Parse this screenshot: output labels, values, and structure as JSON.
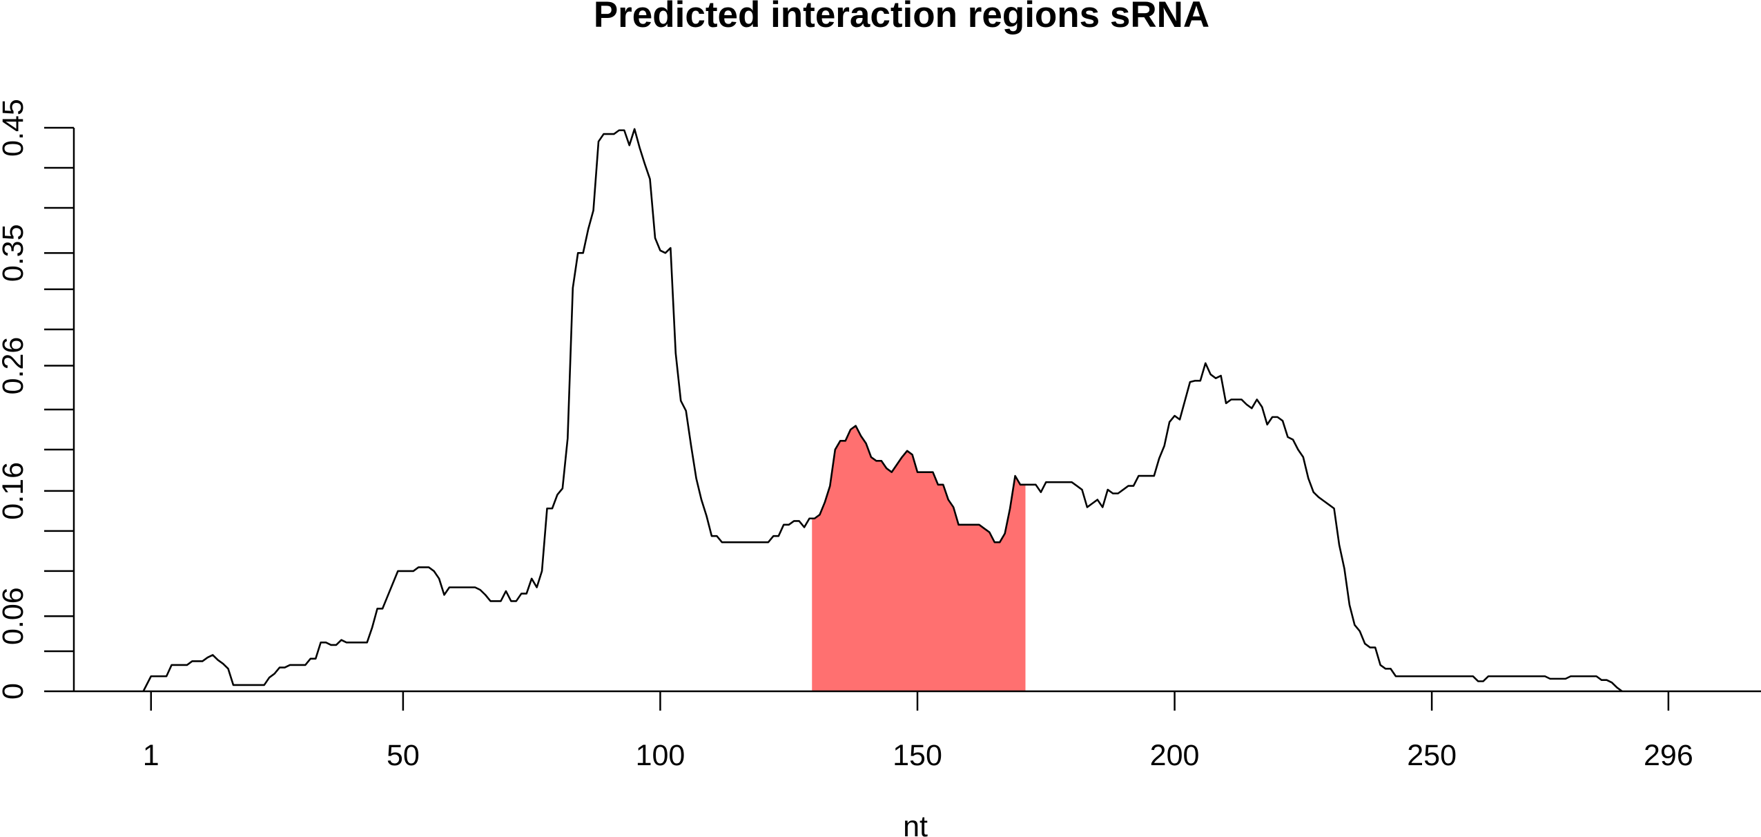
{
  "chart_data": {
    "type": "line",
    "title": "Predicted interaction regions sRNA",
    "xlabel": "nt",
    "ylabel": "",
    "xlim": [
      -14,
      314
    ],
    "ylim": [
      0,
      0.45
    ],
    "x_ticks": [
      1,
      50,
      100,
      150,
      200,
      250,
      296
    ],
    "x_tick_labels": [
      "1",
      "50",
      "100",
      "150",
      "200",
      "250",
      "296"
    ],
    "y_tick_labels": [
      {
        "value": 0,
        "label": "0"
      },
      {
        "value": 0.06,
        "label": "0.06"
      },
      {
        "value": 0.16,
        "label": "0.16"
      },
      {
        "value": 0.26,
        "label": "0.26"
      },
      {
        "value": 0.35,
        "label": "0.35"
      },
      {
        "value": 0.45,
        "label": "0.45"
      }
    ],
    "y_minor_ticks": [
      0.032,
      0.096,
      0.128,
      0.193,
      0.225,
      0.289,
      0.321,
      0.386,
      0.418
    ],
    "highlight_region": {
      "x_start": 129.5,
      "x_end": 171,
      "color": "#FF7070"
    },
    "line_color": "#000000",
    "series": [
      {
        "values": [
          [
            -0.5,
            0
          ],
          [
            0,
            0.004
          ],
          [
            1,
            0.012
          ],
          [
            2,
            0.012
          ],
          [
            3,
            0.012
          ],
          [
            4,
            0.012
          ],
          [
            5,
            0.021
          ],
          [
            6,
            0.021
          ],
          [
            7,
            0.021
          ],
          [
            8,
            0.021
          ],
          [
            9,
            0.024
          ],
          [
            10,
            0.024
          ],
          [
            11,
            0.024
          ],
          [
            12,
            0.027
          ],
          [
            13,
            0.029
          ],
          [
            14,
            0.025
          ],
          [
            15,
            0.022
          ],
          [
            16,
            0.018
          ],
          [
            17,
            0.005
          ],
          [
            18,
            0.005
          ],
          [
            19,
            0.005
          ],
          [
            20,
            0.005
          ],
          [
            21,
            0.005
          ],
          [
            22,
            0.005
          ],
          [
            23,
            0.005
          ],
          [
            24,
            0.011
          ],
          [
            25,
            0.014
          ],
          [
            26,
            0.019
          ],
          [
            27,
            0.019
          ],
          [
            28,
            0.021
          ],
          [
            29,
            0.021
          ],
          [
            30,
            0.021
          ],
          [
            31,
            0.021
          ],
          [
            32,
            0.026
          ],
          [
            33,
            0.026
          ],
          [
            34,
            0.039
          ],
          [
            35,
            0.039
          ],
          [
            36,
            0.037
          ],
          [
            37,
            0.037
          ],
          [
            38,
            0.041
          ],
          [
            39,
            0.039
          ],
          [
            40,
            0.039
          ],
          [
            41,
            0.039
          ],
          [
            42,
            0.039
          ],
          [
            43,
            0.039
          ],
          [
            44,
            0.051
          ],
          [
            45,
            0.066
          ],
          [
            46,
            0.066
          ],
          [
            47,
            0.076
          ],
          [
            48,
            0.086
          ],
          [
            49,
            0.096
          ],
          [
            50,
            0.096
          ],
          [
            51,
            0.096
          ],
          [
            52,
            0.096
          ],
          [
            53,
            0.099
          ],
          [
            54,
            0.099
          ],
          [
            55,
            0.099
          ],
          [
            56,
            0.096
          ],
          [
            57,
            0.09
          ],
          [
            58,
            0.077
          ],
          [
            59,
            0.083
          ],
          [
            60,
            0.083
          ],
          [
            61,
            0.083
          ],
          [
            62,
            0.083
          ],
          [
            63,
            0.083
          ],
          [
            64,
            0.083
          ],
          [
            65,
            0.081
          ],
          [
            66,
            0.077
          ],
          [
            67,
            0.072
          ],
          [
            68,
            0.072
          ],
          [
            69,
            0.072
          ],
          [
            70,
            0.08
          ],
          [
            71,
            0.072
          ],
          [
            72,
            0.072
          ],
          [
            73,
            0.078
          ],
          [
            74,
            0.078
          ],
          [
            75,
            0.09
          ],
          [
            76,
            0.083
          ],
          [
            77,
            0.096
          ],
          [
            78,
            0.146
          ],
          [
            79,
            0.146
          ],
          [
            80,
            0.157
          ],
          [
            81,
            0.162
          ],
          [
            82,
            0.202
          ],
          [
            83,
            0.322
          ],
          [
            84,
            0.35
          ],
          [
            85,
            0.35
          ],
          [
            86,
            0.369
          ],
          [
            87,
            0.384
          ],
          [
            88,
            0.439
          ],
          [
            89,
            0.445
          ],
          [
            90,
            0.445
          ],
          [
            91,
            0.445
          ],
          [
            92,
            0.448
          ],
          [
            93,
            0.448
          ],
          [
            94,
            0.436
          ],
          [
            95,
            0.449
          ],
          [
            96,
            0.434
          ],
          [
            97,
            0.421
          ],
          [
            98,
            0.409
          ],
          [
            99,
            0.362
          ],
          [
            100,
            0.352
          ],
          [
            101,
            0.35
          ],
          [
            102,
            0.354
          ],
          [
            103,
            0.27
          ],
          [
            104,
            0.232
          ],
          [
            105,
            0.224
          ],
          [
            106,
            0.196
          ],
          [
            107,
            0.17
          ],
          [
            108,
            0.153
          ],
          [
            109,
            0.14
          ],
          [
            110,
            0.124
          ],
          [
            111,
            0.124
          ],
          [
            112,
            0.119
          ],
          [
            113,
            0.119
          ],
          [
            114,
            0.119
          ],
          [
            115,
            0.119
          ],
          [
            116,
            0.119
          ],
          [
            117,
            0.119
          ],
          [
            118,
            0.119
          ],
          [
            119,
            0.119
          ],
          [
            120,
            0.119
          ],
          [
            121,
            0.119
          ],
          [
            122,
            0.124
          ],
          [
            123,
            0.124
          ],
          [
            124,
            0.133
          ],
          [
            125,
            0.133
          ],
          [
            126,
            0.136
          ],
          [
            127,
            0.136
          ],
          [
            128,
            0.131
          ],
          [
            129,
            0.138
          ],
          [
            130,
            0.138
          ],
          [
            131,
            0.141
          ],
          [
            132,
            0.151
          ],
          [
            133,
            0.164
          ],
          [
            134,
            0.193
          ],
          [
            135,
            0.2
          ],
          [
            136,
            0.2
          ],
          [
            137,
            0.209
          ],
          [
            138,
            0.212
          ],
          [
            139,
            0.204
          ],
          [
            140,
            0.198
          ],
          [
            141,
            0.187
          ],
          [
            142,
            0.184
          ],
          [
            143,
            0.184
          ],
          [
            144,
            0.178
          ],
          [
            145,
            0.175
          ],
          [
            146,
            0.181
          ],
          [
            147,
            0.187
          ],
          [
            148,
            0.192
          ],
          [
            149,
            0.189
          ],
          [
            150,
            0.175
          ],
          [
            151,
            0.175
          ],
          [
            152,
            0.175
          ],
          [
            153,
            0.175
          ],
          [
            154,
            0.165
          ],
          [
            155,
            0.165
          ],
          [
            156,
            0.153
          ],
          [
            157,
            0.147
          ],
          [
            158,
            0.133
          ],
          [
            159,
            0.133
          ],
          [
            160,
            0.133
          ],
          [
            161,
            0.133
          ],
          [
            162,
            0.133
          ],
          [
            163,
            0.13
          ],
          [
            164,
            0.127
          ],
          [
            165,
            0.119
          ],
          [
            166,
            0.119
          ],
          [
            167,
            0.126
          ],
          [
            168,
            0.146
          ],
          [
            169,
            0.172
          ],
          [
            170,
            0.165
          ],
          [
            171,
            0.165
          ],
          [
            172,
            0.165
          ],
          [
            173,
            0.165
          ],
          [
            174,
            0.159
          ],
          [
            175,
            0.167
          ],
          [
            176,
            0.167
          ],
          [
            177,
            0.167
          ],
          [
            178,
            0.167
          ],
          [
            179,
            0.167
          ],
          [
            180,
            0.167
          ],
          [
            181,
            0.164
          ],
          [
            182,
            0.161
          ],
          [
            183,
            0.147
          ],
          [
            184,
            0.15
          ],
          [
            185,
            0.153
          ],
          [
            186,
            0.147
          ],
          [
            187,
            0.161
          ],
          [
            188,
            0.158
          ],
          [
            189,
            0.158
          ],
          [
            190,
            0.161
          ],
          [
            191,
            0.164
          ],
          [
            192,
            0.164
          ],
          [
            193,
            0.172
          ],
          [
            194,
            0.172
          ],
          [
            195,
            0.172
          ],
          [
            196,
            0.172
          ],
          [
            197,
            0.186
          ],
          [
            198,
            0.196
          ],
          [
            199,
            0.215
          ],
          [
            200,
            0.22
          ],
          [
            201,
            0.217
          ],
          [
            202,
            0.232
          ],
          [
            203,
            0.247
          ],
          [
            204,
            0.248
          ],
          [
            205,
            0.248
          ],
          [
            206,
            0.262
          ],
          [
            207,
            0.253
          ],
          [
            208,
            0.25
          ],
          [
            209,
            0.252
          ],
          [
            210,
            0.23
          ],
          [
            211,
            0.233
          ],
          [
            212,
            0.233
          ],
          [
            213,
            0.233
          ],
          [
            214,
            0.229
          ],
          [
            215,
            0.226
          ],
          [
            216,
            0.233
          ],
          [
            217,
            0.227
          ],
          [
            218,
            0.213
          ],
          [
            219,
            0.219
          ],
          [
            220,
            0.219
          ],
          [
            221,
            0.216
          ],
          [
            222,
            0.203
          ],
          [
            223,
            0.201
          ],
          [
            224,
            0.193
          ],
          [
            225,
            0.187
          ],
          [
            226,
            0.17
          ],
          [
            227,
            0.159
          ],
          [
            228,
            0.155
          ],
          [
            229,
            0.152
          ],
          [
            230,
            0.149
          ],
          [
            231,
            0.146
          ],
          [
            232,
            0.117
          ],
          [
            233,
            0.098
          ],
          [
            234,
            0.069
          ],
          [
            235,
            0.053
          ],
          [
            236,
            0.048
          ],
          [
            237,
            0.038
          ],
          [
            238,
            0.035
          ],
          [
            239,
            0.035
          ],
          [
            240,
            0.021
          ],
          [
            241,
            0.018
          ],
          [
            242,
            0.018
          ],
          [
            243,
            0.012
          ],
          [
            244,
            0.012
          ],
          [
            245,
            0.012
          ],
          [
            246,
            0.012
          ],
          [
            247,
            0.012
          ],
          [
            248,
            0.012
          ],
          [
            249,
            0.012
          ],
          [
            250,
            0.012
          ],
          [
            251,
            0.012
          ],
          [
            252,
            0.012
          ],
          [
            253,
            0.012
          ],
          [
            254,
            0.012
          ],
          [
            255,
            0.012
          ],
          [
            256,
            0.012
          ],
          [
            257,
            0.012
          ],
          [
            258,
            0.012
          ],
          [
            259,
            0.008
          ],
          [
            260,
            0.008
          ],
          [
            261,
            0.012
          ],
          [
            262,
            0.012
          ],
          [
            263,
            0.012
          ],
          [
            264,
            0.012
          ],
          [
            265,
            0.012
          ],
          [
            266,
            0.012
          ],
          [
            267,
            0.012
          ],
          [
            268,
            0.012
          ],
          [
            269,
            0.012
          ],
          [
            270,
            0.012
          ],
          [
            271,
            0.012
          ],
          [
            272,
            0.012
          ],
          [
            273,
            0.01
          ],
          [
            274,
            0.01
          ],
          [
            275,
            0.01
          ],
          [
            276,
            0.01
          ],
          [
            277,
            0.012
          ],
          [
            278,
            0.012
          ],
          [
            279,
            0.012
          ],
          [
            280,
            0.012
          ],
          [
            281,
            0.012
          ],
          [
            282,
            0.012
          ],
          [
            283,
            0.009
          ],
          [
            284,
            0.009
          ],
          [
            285,
            0.007
          ],
          [
            286,
            0.003
          ],
          [
            287,
            0
          ]
        ]
      }
    ]
  }
}
